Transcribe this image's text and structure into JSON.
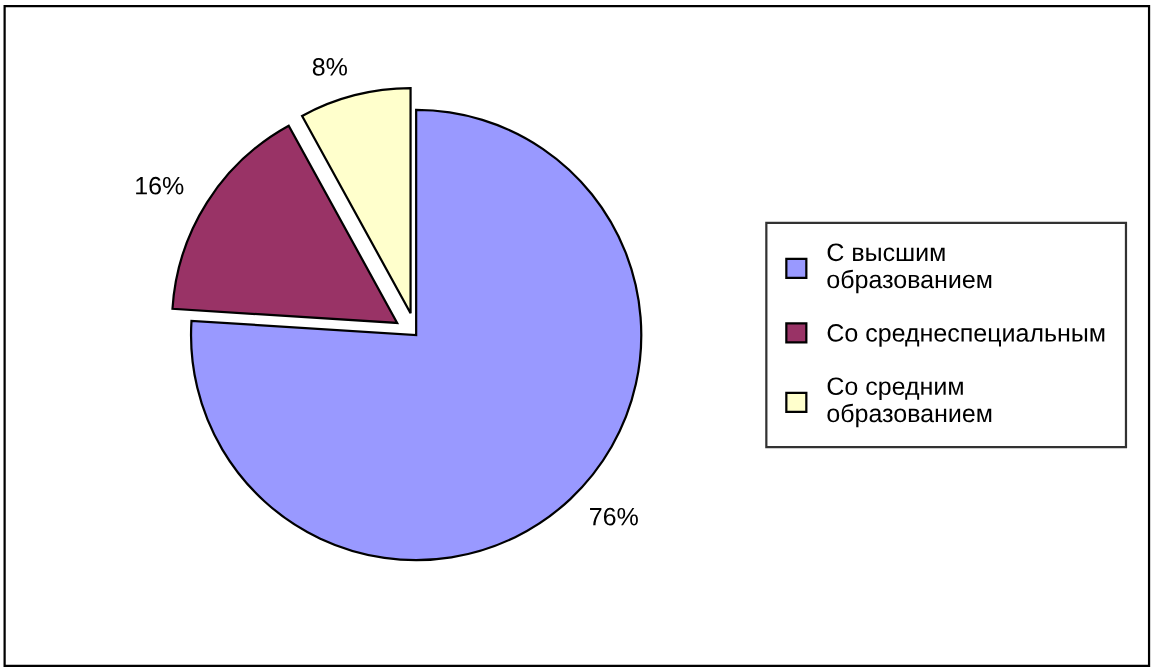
{
  "chart_data": {
    "type": "pie",
    "categories": [
      "С высшим\nобразованием",
      "Со среднеспециальным",
      "Со средним\nобразованием"
    ],
    "values": [
      76,
      16,
      8
    ],
    "value_labels": [
      "76%",
      "16%",
      "8%"
    ],
    "colors": [
      "#9999ff",
      "#993366",
      "#ffffcc"
    ],
    "legend": "right"
  }
}
